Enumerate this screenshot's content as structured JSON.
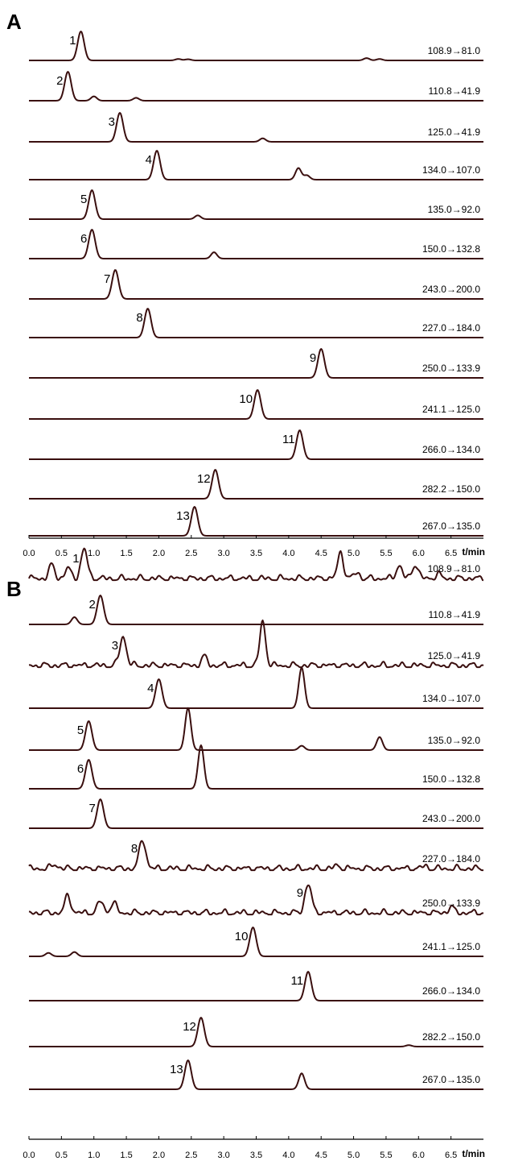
{
  "trace_color": "#3a0f0f",
  "chart_data": [
    {
      "type": "line",
      "panel_label": "A",
      "xlabel": "t/min",
      "xlim": [
        0.0,
        7.0
      ],
      "x_ticks": [
        "0.0",
        "0.5",
        "1.0",
        "1.5",
        "2.0",
        "2.5",
        "3.0",
        "3.5",
        "4.0",
        "4.5",
        "5.0",
        "5.5",
        "6.0",
        "6.5"
      ],
      "series": [
        {
          "name": "108.9→81.0",
          "peak_label": "1",
          "peak_time": 0.8,
          "minor_peaks": [
            [
              2.3,
              0.05
            ],
            [
              2.45,
              0.04
            ],
            [
              5.2,
              0.08
            ],
            [
              5.4,
              0.05
            ]
          ]
        },
        {
          "name": "110.8→41.9",
          "peak_label": "2",
          "peak_time": 0.6,
          "minor_peaks": [
            [
              1.0,
              0.15
            ],
            [
              1.65,
              0.1
            ]
          ]
        },
        {
          "name": "125.0→41.9",
          "peak_label": "3",
          "peak_time": 1.4,
          "minor_peaks": [
            [
              3.6,
              0.12
            ]
          ]
        },
        {
          "name": "134.0→107.0",
          "peak_label": "4",
          "peak_time": 1.97,
          "minor_peaks": [
            [
              4.15,
              0.4
            ],
            [
              4.28,
              0.15
            ]
          ]
        },
        {
          "name": "135.0→92.0",
          "peak_label": "5",
          "peak_time": 0.97,
          "minor_peaks": [
            [
              2.6,
              0.13
            ]
          ]
        },
        {
          "name": "150.0→132.8",
          "peak_label": "6",
          "peak_time": 0.97,
          "minor_peaks": [
            [
              2.85,
              0.22
            ]
          ]
        },
        {
          "name": "243.0→200.0",
          "peak_label": "7",
          "peak_time": 1.33,
          "minor_peaks": []
        },
        {
          "name": "227.0→184.0",
          "peak_label": "8",
          "peak_time": 1.83,
          "minor_peaks": []
        },
        {
          "name": "250.0→133.9",
          "peak_label": "9",
          "peak_time": 4.5,
          "minor_peaks": []
        },
        {
          "name": "241.1→125.0",
          "peak_label": "10",
          "peak_time": 3.52,
          "minor_peaks": []
        },
        {
          "name": "266.0→134.0",
          "peak_label": "11",
          "peak_time": 4.17,
          "minor_peaks": []
        },
        {
          "name": "282.2→150.0",
          "peak_label": "12",
          "peak_time": 2.87,
          "minor_peaks": []
        },
        {
          "name": "267.0→135.0",
          "peak_label": "13",
          "peak_time": 2.55,
          "minor_peaks": []
        }
      ]
    },
    {
      "type": "line",
      "panel_label": "B",
      "xlabel": "t/min",
      "xlim": [
        0.0,
        7.0
      ],
      "x_ticks": [
        "0.0",
        "0.5",
        "1.0",
        "1.5",
        "2.0",
        "2.5",
        "3.0",
        "3.5",
        "4.0",
        "4.5",
        "5.0",
        "5.5",
        "6.0",
        "6.5"
      ],
      "series": [
        {
          "name": "108.9→81.0",
          "peak_label": "1",
          "peak_time": 0.85,
          "noisy": true,
          "minor_peaks": [
            [
              0.35,
              0.45
            ],
            [
              0.6,
              0.35
            ],
            [
              4.8,
              0.9
            ],
            [
              5.05,
              0.2
            ],
            [
              5.7,
              0.45
            ],
            [
              5.95,
              0.5
            ],
            [
              6.3,
              0.15
            ]
          ]
        },
        {
          "name": "110.8→41.9",
          "peak_label": "2",
          "peak_time": 1.1,
          "minor_peaks": [
            [
              0.7,
              0.25
            ]
          ]
        },
        {
          "name": "125.0→41.9",
          "peak_label": "3",
          "peak_time": 1.45,
          "noisy": true,
          "minor_peaks": [
            [
              2.7,
              0.3
            ],
            [
              3.6,
              1.5
            ]
          ]
        },
        {
          "name": "134.0→107.0",
          "peak_label": "4",
          "peak_time": 2.0,
          "minor_peaks": [
            [
              4.2,
              1.4
            ]
          ]
        },
        {
          "name": "135.0→92.0",
          "peak_label": "5",
          "peak_time": 0.92,
          "minor_peaks": [
            [
              2.45,
              1.45
            ],
            [
              4.2,
              0.15
            ],
            [
              5.4,
              0.45
            ]
          ]
        },
        {
          "name": "150.0→132.8",
          "peak_label": "6",
          "peak_time": 0.92,
          "minor_peaks": [
            [
              2.65,
              1.5
            ]
          ]
        },
        {
          "name": "243.0→200.0",
          "peak_label": "7",
          "peak_time": 1.1,
          "minor_peaks": []
        },
        {
          "name": "227.0→184.0",
          "peak_label": "8",
          "peak_time": 1.75,
          "noisy": true,
          "minor_peaks": [
            [
              0.4,
              0.15
            ],
            [
              4.75,
              0.1
            ],
            [
              6.1,
              0.08
            ]
          ]
        },
        {
          "name": "250.0→133.9",
          "peak_label": "9",
          "peak_time": 4.3,
          "noisy": true,
          "minor_peaks": [
            [
              0.6,
              0.6
            ],
            [
              1.1,
              0.4
            ],
            [
              1.3,
              0.35
            ],
            [
              6.5,
              0.2
            ]
          ]
        },
        {
          "name": "241.1→125.0",
          "peak_label": "10",
          "peak_time": 3.45,
          "minor_peaks": [
            [
              0.3,
              0.12
            ],
            [
              0.7,
              0.15
            ]
          ]
        },
        {
          "name": "266.0→134.0",
          "peak_label": "11",
          "peak_time": 4.3,
          "minor_peaks": []
        },
        {
          "name": "282.2→150.0",
          "peak_label": "12",
          "peak_time": 2.65,
          "minor_peaks": [
            [
              5.85,
              0.05
            ]
          ]
        },
        {
          "name": "267.0→135.0",
          "peak_label": "13",
          "peak_time": 2.45,
          "minor_peaks": [
            [
              4.2,
              0.55
            ]
          ]
        }
      ]
    }
  ]
}
